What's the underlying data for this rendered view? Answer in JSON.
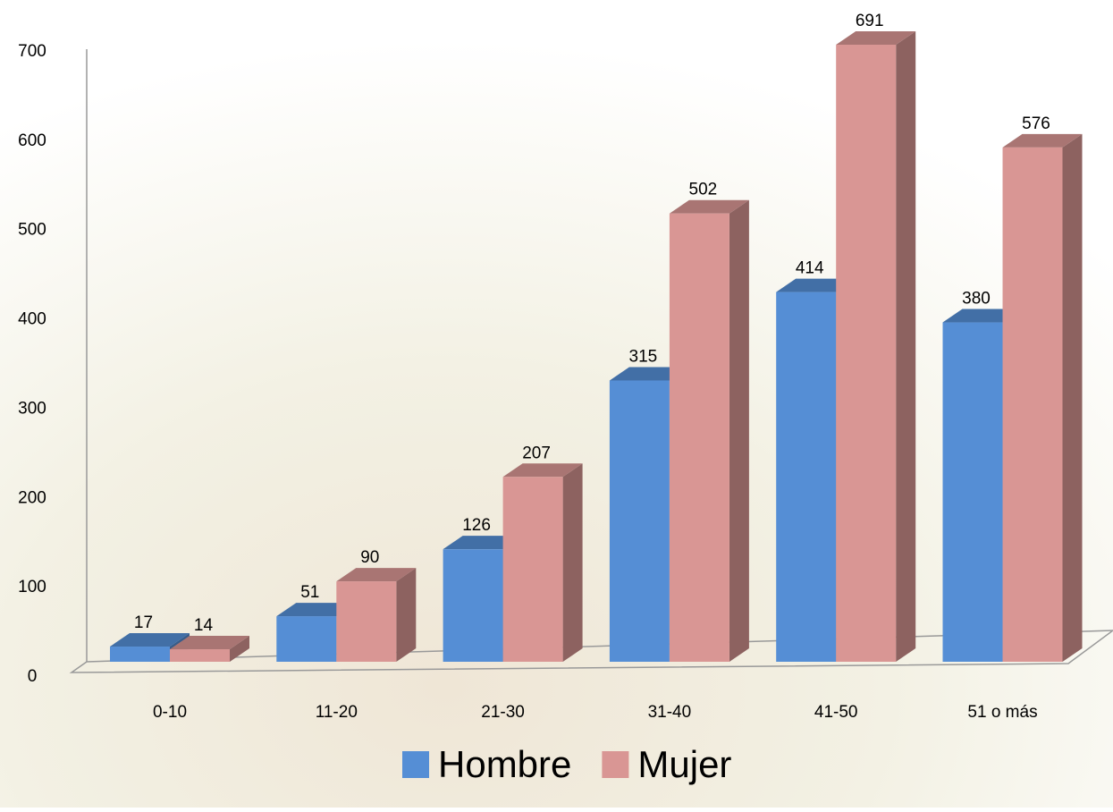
{
  "chart_data": {
    "type": "bar3d",
    "categories": [
      "0-10",
      "11-20",
      "21-30",
      "31-40",
      "41-50",
      "51 o más"
    ],
    "series": [
      {
        "name": "Hombre",
        "color": "#558ed5",
        "values": [
          17,
          51,
          126,
          315,
          414,
          380
        ]
      },
      {
        "name": "Mujer",
        "color": "#d99694",
        "values": [
          14,
          90,
          207,
          502,
          691,
          576
        ]
      }
    ],
    "ylim": [
      0,
      700
    ],
    "yticks": [
      0,
      100,
      200,
      300,
      400,
      500,
      600,
      700
    ],
    "grid": false,
    "legend": "bottom"
  }
}
